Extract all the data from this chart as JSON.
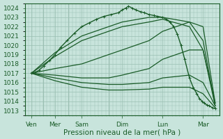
{
  "xlabel": "Pression niveau de la mer( hPa )",
  "ylim": [
    1012.5,
    1024.5
  ],
  "yticks": [
    1013,
    1014,
    1015,
    1016,
    1017,
    1018,
    1019,
    1020,
    1021,
    1022,
    1023,
    1024
  ],
  "bg_color": "#c8e4dc",
  "grid_color": "#9abfb2",
  "line_color": "#1a5c28",
  "fig_bg": "#c8e4dc",
  "day_labels": [
    "Ven",
    "Mer",
    "Sam",
    "Dim",
    "Lun",
    "Mar"
  ],
  "day_positions": [
    0.08,
    0.72,
    1.45,
    2.55,
    3.65,
    4.75
  ],
  "xlim": [
    -0.1,
    5.2
  ],
  "xline_positions": [
    0.4,
    1.08,
    2.18,
    3.28,
    4.38
  ],
  "lines": [
    {
      "x": [
        0.08,
        0.18,
        0.28,
        0.42,
        0.58,
        0.72,
        0.88,
        1.05,
        1.25,
        1.45,
        1.65,
        1.85,
        2.05,
        2.25,
        2.45,
        2.55,
        2.65,
        2.72,
        2.82,
        2.92,
        3.05,
        3.15,
        3.28,
        3.42,
        3.52,
        3.65,
        3.75,
        3.85,
        3.95,
        4.05,
        4.15,
        4.25,
        4.38,
        4.48,
        4.58,
        4.65,
        4.72,
        4.78,
        4.85,
        4.92,
        5.0,
        5.08
      ],
      "y": [
        1017.0,
        1017.1,
        1017.3,
        1017.8,
        1018.4,
        1019.0,
        1019.8,
        1020.5,
        1021.3,
        1022.0,
        1022.4,
        1022.8,
        1023.1,
        1023.3,
        1023.5,
        1023.8,
        1024.0,
        1024.2,
        1024.0,
        1023.8,
        1023.6,
        1023.5,
        1023.3,
        1023.2,
        1023.1,
        1023.0,
        1022.8,
        1022.5,
        1022.0,
        1021.2,
        1020.0,
        1018.5,
        1016.5,
        1015.5,
        1014.8,
        1014.3,
        1014.0,
        1013.8,
        1013.6,
        1013.5,
        1013.3,
        1013.2
      ],
      "marker": true,
      "lw": 1.0
    },
    {
      "x": [
        0.08,
        0.72,
        1.45,
        2.18,
        2.55,
        3.28,
        3.65,
        4.38,
        4.75,
        5.08
      ],
      "y": [
        1017.0,
        1019.2,
        1021.0,
        1022.0,
        1022.5,
        1023.0,
        1023.0,
        1022.5,
        1020.5,
        1013.5
      ],
      "marker": false,
      "lw": 0.9
    },
    {
      "x": [
        0.08,
        0.72,
        1.45,
        2.18,
        2.55,
        3.28,
        3.65,
        4.38,
        4.75,
        5.08
      ],
      "y": [
        1017.0,
        1018.8,
        1020.5,
        1021.5,
        1022.0,
        1022.5,
        1022.8,
        1022.0,
        1019.5,
        1013.5
      ],
      "marker": false,
      "lw": 0.9
    },
    {
      "x": [
        0.08,
        0.72,
        1.45,
        2.18,
        2.55,
        3.28,
        3.65,
        4.38,
        4.75,
        5.08
      ],
      "y": [
        1017.0,
        1017.5,
        1018.0,
        1019.0,
        1019.5,
        1020.5,
        1021.5,
        1022.5,
        1022.0,
        1013.8
      ],
      "marker": false,
      "lw": 0.9
    },
    {
      "x": [
        0.08,
        0.72,
        1.45,
        2.18,
        2.55,
        3.28,
        3.65,
        4.38,
        4.75,
        5.08
      ],
      "y": [
        1017.0,
        1016.8,
        1016.5,
        1016.5,
        1016.8,
        1017.5,
        1018.5,
        1019.5,
        1019.5,
        1013.8
      ],
      "marker": false,
      "lw": 0.9
    },
    {
      "x": [
        0.08,
        0.72,
        1.45,
        2.18,
        2.55,
        3.28,
        3.65,
        4.38,
        4.75,
        5.08
      ],
      "y": [
        1017.0,
        1016.5,
        1016.0,
        1015.8,
        1015.8,
        1016.0,
        1016.5,
        1016.8,
        1016.0,
        1013.5
      ],
      "marker": false,
      "lw": 0.9
    },
    {
      "x": [
        0.08,
        0.72,
        1.45,
        2.18,
        2.55,
        3.28,
        3.65,
        4.38,
        4.75,
        5.08
      ],
      "y": [
        1017.0,
        1016.2,
        1015.5,
        1015.2,
        1015.2,
        1015.3,
        1015.5,
        1015.5,
        1014.8,
        1013.3
      ],
      "marker": false,
      "lw": 0.9
    }
  ],
  "spine_color": "#1a5c28",
  "tick_color": "#1a5c28",
  "label_color": "#1a5c28",
  "xlabel_fontsize": 7.5,
  "tick_fontsize": 6.5
}
